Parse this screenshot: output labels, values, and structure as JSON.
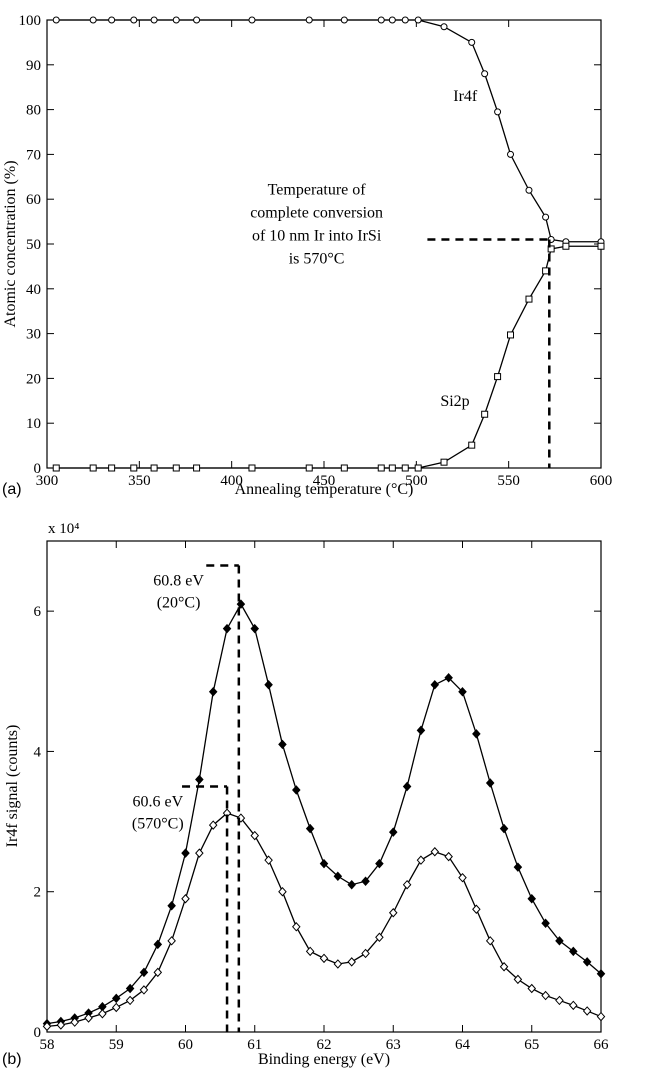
{
  "chart_data": [
    {
      "type": "line",
      "panel_label": "(a)",
      "xlabel": "Annealing temperature (°C)",
      "ylabel": "Atomic concentration (%)",
      "xlim": [
        300,
        600
      ],
      "ylim": [
        0,
        100
      ],
      "xticks": [
        "300",
        "350",
        "400",
        "450",
        "500",
        "550",
        "600"
      ],
      "yticks": [
        "0",
        "10",
        "20",
        "30",
        "40",
        "50",
        "60",
        "70",
        "80",
        "90",
        "100"
      ],
      "grid": false,
      "series": [
        {
          "name": "Ir4f",
          "marker": "circle",
          "x": [
            305,
            325,
            335,
            347,
            358,
            370,
            381,
            411,
            442,
            461,
            481,
            487,
            494,
            501,
            515,
            530,
            537,
            544,
            551,
            561,
            570,
            573,
            581,
            600
          ],
          "y": [
            100,
            100,
            100,
            100,
            100,
            100,
            100,
            100,
            100,
            100,
            100,
            100,
            100,
            100,
            98.5,
            95,
            88,
            79.5,
            70,
            62,
            56,
            51,
            50.5,
            50.5
          ]
        },
        {
          "name": "Si2p",
          "marker": "square",
          "x": [
            305,
            325,
            335,
            347,
            358,
            370,
            381,
            411,
            442,
            461,
            481,
            487,
            494,
            501,
            515,
            530,
            537,
            544,
            551,
            561,
            570,
            573,
            581,
            600
          ],
          "y": [
            0,
            0,
            0,
            0,
            0,
            0,
            0,
            0,
            0,
            0,
            0,
            0,
            0,
            0,
            1.3,
            5.1,
            12,
            20.4,
            29.7,
            37.7,
            44,
            48.9,
            49.5,
            49.5
          ]
        }
      ],
      "annotation": {
        "lines": [
          "Temperature of",
          "complete conversion",
          "of 10 nm Ir into IrSi",
          "is 570°C"
        ],
        "x": 572,
        "y": 51
      }
    },
    {
      "type": "line",
      "panel_label": "(b)",
      "xlabel": "Binding energy (eV)",
      "ylabel": "Ir4f signal (counts)",
      "scale_label": "x 10⁴",
      "xlim": [
        58,
        66
      ],
      "ylim": [
        0,
        7
      ],
      "xticks": [
        "58",
        "59",
        "60",
        "61",
        "62",
        "63",
        "64",
        "65",
        "66"
      ],
      "yticks": [
        "0",
        "2",
        "4",
        "6"
      ],
      "grid": false,
      "series": [
        {
          "condition": "20°C",
          "marker": "filled-diamond",
          "x": [
            58.0,
            58.2,
            58.4,
            58.6,
            58.8,
            59.0,
            59.2,
            59.4,
            59.6,
            59.8,
            60.0,
            60.2,
            60.4,
            60.6,
            60.8,
            61.0,
            61.2,
            61.4,
            61.6,
            61.8,
            62.0,
            62.2,
            62.4,
            62.6,
            62.8,
            63.0,
            63.2,
            63.4,
            63.6,
            63.8,
            64.0,
            64.2,
            64.4,
            64.6,
            64.8,
            65.0,
            65.2,
            65.4,
            65.6,
            65.8,
            66.0
          ],
          "y": [
            0.12,
            0.15,
            0.2,
            0.27,
            0.36,
            0.48,
            0.62,
            0.85,
            1.25,
            1.8,
            2.55,
            3.6,
            4.85,
            5.75,
            6.1,
            5.75,
            4.95,
            4.1,
            3.45,
            2.9,
            2.4,
            2.22,
            2.1,
            2.15,
            2.4,
            2.85,
            3.5,
            4.3,
            4.95,
            5.05,
            4.85,
            4.25,
            3.55,
            2.9,
            2.35,
            1.9,
            1.55,
            1.3,
            1.15,
            1.0,
            0.83
          ]
        },
        {
          "condition": "570°C",
          "marker": "open-diamond",
          "x": [
            58.0,
            58.2,
            58.4,
            58.6,
            58.8,
            59.0,
            59.2,
            59.4,
            59.6,
            59.8,
            60.0,
            60.2,
            60.4,
            60.6,
            60.8,
            61.0,
            61.2,
            61.4,
            61.6,
            61.8,
            62.0,
            62.2,
            62.4,
            62.6,
            62.8,
            63.0,
            63.2,
            63.4,
            63.6,
            63.8,
            64.0,
            64.2,
            64.4,
            64.6,
            64.8,
            65.0,
            65.2,
            65.4,
            65.6,
            65.8,
            66.0
          ],
          "y": [
            0.08,
            0.1,
            0.14,
            0.2,
            0.26,
            0.35,
            0.45,
            0.6,
            0.85,
            1.3,
            1.9,
            2.55,
            2.95,
            3.12,
            3.05,
            2.8,
            2.45,
            2.0,
            1.5,
            1.15,
            1.05,
            0.97,
            1.0,
            1.12,
            1.35,
            1.7,
            2.1,
            2.45,
            2.57,
            2.5,
            2.2,
            1.75,
            1.3,
            0.93,
            0.75,
            0.62,
            0.52,
            0.45,
            0.38,
            0.3,
            0.22
          ]
        }
      ],
      "annotations": [
        {
          "label": "60.8 eV",
          "sublabel": "(20°C)",
          "x": 60.77,
          "y": 6.65
        },
        {
          "label": "60.6 eV",
          "sublabel": "(570°C)",
          "x": 60.6,
          "y": 3.5
        }
      ]
    }
  ]
}
